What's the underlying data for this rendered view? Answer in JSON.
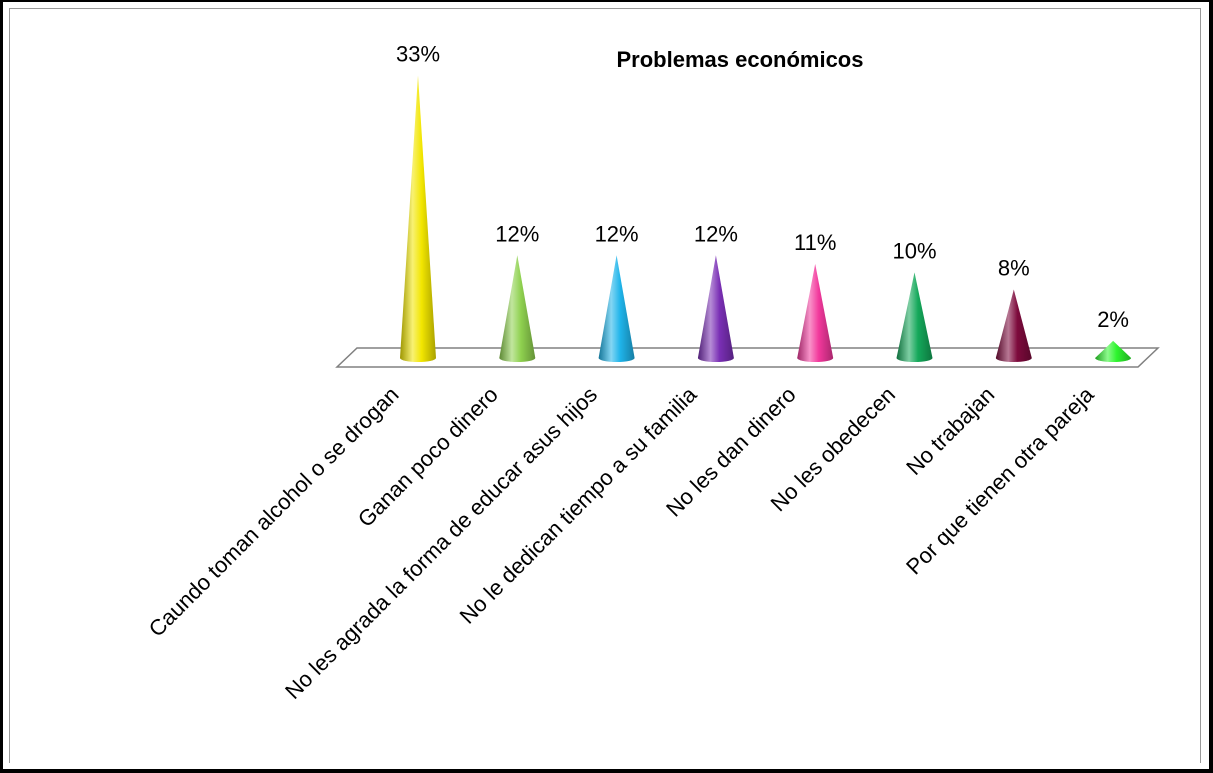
{
  "chart_data": {
    "type": "bar",
    "title": "Problemas económicos",
    "xlabel": "",
    "ylabel": "",
    "ylim": [
      0,
      35
    ],
    "grid": false,
    "legend": "none",
    "categories": [
      "Caundo toman alcohol o se drogan",
      "Ganan poco dinero",
      "No les agrada la forma de educar asus hijos",
      "No le dedican tiempo a su familia",
      "No les dan dinero",
      "No les obedecen",
      "No trabajan",
      "Por que tienen otra pareja"
    ],
    "values": [
      33,
      12,
      12,
      12,
      11,
      10,
      8,
      2
    ],
    "data_labels": [
      "33%",
      "12%",
      "12%",
      "12%",
      "11%",
      "10%",
      "8%",
      "2%"
    ],
    "colors": [
      "#f2e600",
      "#8fd14f",
      "#1fb4ea",
      "#7a2fb5",
      "#f2389c",
      "#14a85a",
      "#7d0a3c",
      "#2ef52e"
    ]
  }
}
